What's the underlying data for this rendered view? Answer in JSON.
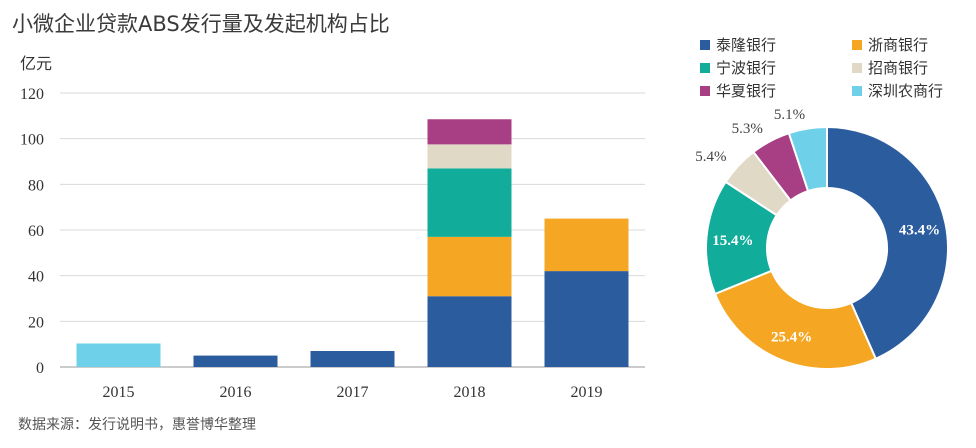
{
  "title": "小微企业贷款ABS发行量及发起机构占比",
  "unit_label": "亿元",
  "source": "数据来源：发行说明书，惠誉博华整理",
  "colors": {
    "tailong": "#2b5c9e",
    "zheshang": "#f5a623",
    "ningbo": "#12ad9a",
    "zhaoshang": "#e0d9c6",
    "huaxia": "#a83e83",
    "shenzhen": "#6fd0ea"
  },
  "legend": [
    {
      "label": "泰隆银行",
      "color": "#2b5c9e"
    },
    {
      "label": "浙商银行",
      "color": "#f5a623"
    },
    {
      "label": "宁波银行",
      "color": "#12ad9a"
    },
    {
      "label": "招商银行",
      "color": "#e0d9c6"
    },
    {
      "label": "华夏银行",
      "color": "#a83e83"
    },
    {
      "label": "深圳农商行",
      "color": "#6fd0ea"
    }
  ],
  "chart_data": [
    {
      "type": "bar",
      "stacked": true,
      "categories": [
        "2015",
        "2016",
        "2017",
        "2018",
        "2019"
      ],
      "ylim": [
        0,
        120
      ],
      "yticks": [
        0,
        20,
        40,
        60,
        80,
        100,
        120
      ],
      "grid": true,
      "series": [
        {
          "name": "泰隆银行",
          "color": "#2b5c9e",
          "values": [
            0,
            5,
            7,
            31,
            42
          ]
        },
        {
          "name": "浙商银行",
          "color": "#f5a623",
          "values": [
            0,
            0,
            0,
            26,
            23
          ]
        },
        {
          "name": "宁波银行",
          "color": "#12ad9a",
          "values": [
            0,
            0,
            0,
            30,
            0
          ]
        },
        {
          "name": "招商银行",
          "color": "#e0d9c6",
          "values": [
            0,
            0,
            0,
            10.5,
            0
          ]
        },
        {
          "name": "华夏银行",
          "color": "#a83e83",
          "values": [
            0,
            0,
            0,
            11,
            0
          ]
        },
        {
          "name": "深圳农商行",
          "color": "#6fd0ea",
          "values": [
            10.3,
            0,
            0,
            0,
            0
          ]
        }
      ]
    },
    {
      "type": "pie",
      "donut": true,
      "slices": [
        {
          "name": "泰隆银行",
          "value": 43.4,
          "label": "43.4%",
          "color": "#2b5c9e"
        },
        {
          "name": "浙商银行",
          "value": 25.4,
          "label": "25.4%",
          "color": "#f5a623"
        },
        {
          "name": "宁波银行",
          "value": 15.4,
          "label": "15.4%",
          "color": "#12ad9a"
        },
        {
          "name": "招商银行",
          "value": 5.4,
          "label": "5.4%",
          "color": "#e0d9c6"
        },
        {
          "name": "华夏银行",
          "value": 5.3,
          "label": "5.3%",
          "color": "#a83e83"
        },
        {
          "name": "深圳农商行",
          "value": 5.1,
          "label": "5.1%",
          "color": "#6fd0ea"
        }
      ]
    }
  ]
}
